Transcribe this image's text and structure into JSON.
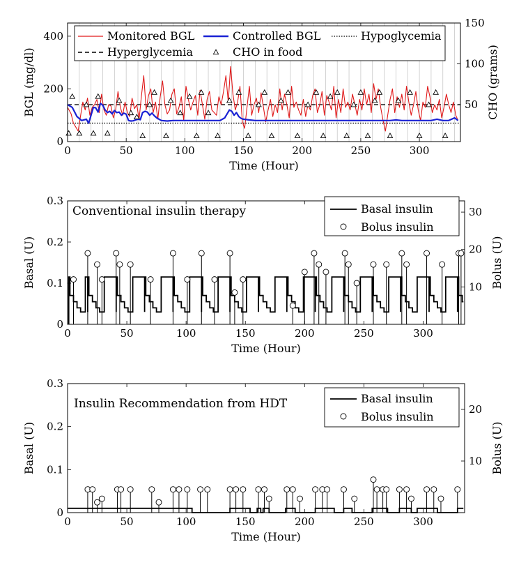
{
  "chart_data": [
    {
      "type": "line",
      "xlabel": "Time (Hour)",
      "ylabel": "BGL (mg/dl)",
      "y2label": "CHO (grams)",
      "xlim": [
        0,
        335
      ],
      "ylim": [
        0,
        450
      ],
      "y2lim": [
        5,
        150
      ],
      "xticks": [
        0,
        50,
        100,
        150,
        200,
        250,
        300
      ],
      "yticks": [
        0,
        200,
        400
      ],
      "y2ticks": [
        50,
        100,
        150
      ],
      "grid_x": true,
      "legend": {
        "placement": "top",
        "entries": [
          {
            "label": "Monitored BGL",
            "style": "red-line"
          },
          {
            "label": "Controlled BGL",
            "style": "blue-line"
          },
          {
            "label": "Hypoglycemia",
            "style": "dotted"
          },
          {
            "label": "Hyperglycemia",
            "style": "dashed"
          },
          {
            "label": "CHO in food",
            "style": "triangle"
          }
        ]
      },
      "thresholds": {
        "hypoglycemia": 70,
        "hyperglycemia": 140
      },
      "series": [
        {
          "name": "Monitored BGL",
          "color": "#e0191a",
          "x": [
            0,
            3,
            5,
            7,
            9,
            11,
            13,
            15,
            17,
            19,
            21,
            23,
            25,
            27,
            29,
            31,
            33,
            35,
            37,
            39,
            41,
            43,
            45,
            47,
            49,
            51,
            53,
            55,
            57,
            59,
            61,
            63,
            65,
            67,
            69,
            71,
            73,
            75,
            77,
            79,
            81,
            83,
            85,
            87,
            89,
            91,
            93,
            95,
            97,
            99,
            101,
            103,
            105,
            107,
            109,
            111,
            113,
            115,
            117,
            119,
            121,
            123,
            125,
            127,
            129,
            131,
            133,
            135,
            137,
            139,
            141,
            143,
            145,
            147,
            149,
            151,
            153,
            155,
            157,
            159,
            161,
            163,
            165,
            167,
            169,
            171,
            173,
            175,
            177,
            179,
            181,
            183,
            185,
            187,
            189,
            191,
            193,
            195,
            197,
            199,
            201,
            203,
            205,
            207,
            209,
            211,
            213,
            215,
            217,
            219,
            221,
            223,
            225,
            227,
            229,
            231,
            233,
            235,
            237,
            239,
            241,
            243,
            245,
            247,
            249,
            251,
            253,
            255,
            257,
            259,
            261,
            263,
            265,
            267,
            269,
            271,
            273,
            275,
            277,
            279,
            281,
            283,
            285,
            287,
            289,
            291,
            293,
            295,
            297,
            299,
            301,
            303,
            305,
            307,
            309,
            311,
            313,
            315,
            317,
            319,
            321,
            323,
            325,
            327,
            329,
            331,
            333
          ],
          "values": [
            130,
            105,
            70,
            55,
            40,
            95,
            150,
            120,
            165,
            100,
            130,
            140,
            160,
            110,
            180,
            120,
            100,
            140,
            135,
            90,
            120,
            190,
            130,
            100,
            150,
            110,
            95,
            165,
            125,
            140,
            85,
            175,
            250,
            120,
            175,
            200,
            110,
            150,
            85,
            170,
            230,
            140,
            105,
            120,
            180,
            200,
            105,
            130,
            170,
            80,
            210,
            160,
            120,
            150,
            175,
            100,
            195,
            140,
            85,
            160,
            190,
            120,
            110,
            100,
            170,
            140,
            190,
            250,
            150,
            285,
            180,
            120,
            150,
            210,
            75,
            50,
            130,
            210,
            100,
            140,
            165,
            110,
            185,
            130,
            75,
            120,
            160,
            95,
            140,
            110,
            200,
            120,
            180,
            140,
            90,
            210,
            130,
            150,
            120,
            100,
            160,
            95,
            140,
            120,
            175,
            200,
            110,
            140,
            190,
            100,
            175,
            150,
            120,
            210,
            90,
            160,
            110,
            200,
            130,
            150,
            120,
            180,
            140,
            100,
            160,
            120,
            200,
            140,
            180,
            110,
            220,
            160,
            200,
            130,
            80,
            40,
            100,
            160,
            200,
            110,
            170,
            130,
            180,
            120,
            210,
            150,
            100,
            140,
            190,
            120,
            80,
            150,
            130,
            210,
            170,
            110,
            140,
            120,
            160,
            90,
            130,
            180,
            140,
            110,
            150,
            100,
            80
          ]
        },
        {
          "name": "Controlled BGL",
          "color": "#1a22d4",
          "x": [
            0,
            4,
            8,
            12,
            16,
            18,
            20,
            22,
            24,
            26,
            28,
            30,
            32,
            34,
            36,
            38,
            40,
            42,
            44,
            46,
            48,
            50,
            52,
            54,
            56,
            58,
            60,
            62,
            64,
            66,
            68,
            70,
            72,
            74,
            76,
            78,
            80,
            85,
            90,
            95,
            100,
            105,
            110,
            115,
            120,
            125,
            130,
            134,
            136,
            138,
            140,
            142,
            144,
            146,
            148,
            150,
            155,
            160,
            165,
            170,
            175,
            180,
            185,
            190,
            195,
            200,
            205,
            210,
            215,
            220,
            225,
            230,
            235,
            240,
            245,
            250,
            255,
            260,
            265,
            270,
            275,
            280,
            285,
            290,
            295,
            300,
            305,
            310,
            315,
            320,
            325,
            330,
            333
          ],
          "values": [
            140,
            130,
            95,
            80,
            85,
            70,
            100,
            130,
            128,
            112,
            145,
            138,
            120,
            110,
            115,
            105,
            118,
            110,
            112,
            100,
            108,
            104,
            80,
            78,
            79,
            82,
            85,
            83,
            110,
            115,
            112,
            100,
            108,
            98,
            90,
            85,
            80,
            78,
            80,
            80,
            80,
            80,
            80,
            80,
            80,
            80,
            80,
            90,
            105,
            120,
            115,
            100,
            110,
            95,
            88,
            85,
            82,
            80,
            80,
            80,
            80,
            80,
            80,
            80,
            80,
            80,
            80,
            80,
            80,
            80,
            80,
            80,
            80,
            80,
            80,
            80,
            80,
            80,
            80,
            80,
            80,
            82,
            80,
            80,
            80,
            80,
            80,
            80,
            85,
            80,
            80,
            90,
            80
          ]
        }
      ],
      "cho_in_food": {
        "name": "CHO in food",
        "x": [
          1,
          4,
          10,
          16,
          22,
          26,
          34,
          44,
          54,
          59,
          64,
          70,
          74,
          84,
          88,
          96,
          104,
          110,
          114,
          120,
          128,
          138,
          146,
          154,
          163,
          168,
          174,
          182,
          188,
          196,
          205,
          212,
          218,
          224,
          230,
          238,
          244,
          250,
          256,
          262,
          266,
          275,
          282,
          292,
          300,
          308,
          314,
          322
        ],
        "values": [
          15,
          60,
          15,
          50,
          15,
          60,
          15,
          55,
          40,
          35,
          12,
          50,
          65,
          12,
          55,
          40,
          60,
          12,
          65,
          40,
          12,
          55,
          65,
          12,
          50,
          65,
          12,
          55,
          65,
          12,
          50,
          65,
          12,
          60,
          65,
          12,
          50,
          65,
          12,
          55,
          65,
          12,
          55,
          65,
          12,
          50,
          65,
          12
        ]
      }
    },
    {
      "type": "line",
      "xlabel": "Time (Hour)",
      "ylabel": "Basal (U)",
      "y2label": "Bolus (U)",
      "xlim": [
        0,
        335
      ],
      "ylim": [
        0,
        0.3
      ],
      "y2lim": [
        0,
        33
      ],
      "xticks": [
        0,
        50,
        100,
        150,
        200,
        250,
        300
      ],
      "yticks": [
        0,
        0.1,
        0.2,
        0.3
      ],
      "y2ticks": [
        10,
        20,
        30
      ],
      "annotation": "Conventional insulin therapy",
      "legend": {
        "placement": "top-right",
        "entries": [
          {
            "label": "Basal insulin",
            "style": "black-line"
          },
          {
            "label": "Bolus insulin",
            "style": "circle"
          }
        ]
      },
      "basal_cycle": {
        "period_hours": 24,
        "starts": [
          1,
          17,
          41,
          65,
          89,
          113,
          137,
          161,
          185,
          209,
          233,
          257,
          281,
          305,
          329
        ],
        "end": 334,
        "steps": [
          [
            0,
            0.115
          ],
          [
            1,
            0.07
          ],
          [
            4,
            0.055
          ],
          [
            7,
            0.04
          ],
          [
            10,
            0.03
          ],
          [
            14,
            0.115
          ]
        ]
      },
      "bolus": {
        "x": [
          5,
          17,
          25,
          29,
          41,
          44,
          53,
          70,
          89,
          101,
          113,
          124,
          137,
          141,
          148,
          190,
          200,
          208,
          212,
          218,
          234,
          237,
          244,
          258,
          269,
          282,
          286,
          303,
          316,
          330,
          332
        ],
        "values": [
          12,
          19,
          16,
          12,
          19,
          16,
          16,
          12,
          19,
          12,
          19,
          12,
          19,
          8.5,
          12,
          5,
          14,
          19,
          16,
          14,
          19,
          16,
          11,
          16,
          16,
          19,
          16,
          19,
          16,
          19,
          19
        ]
      }
    },
    {
      "type": "line",
      "xlabel": "Time (Hour)",
      "ylabel": "Basal (U)",
      "y2label": "Bolus (U)",
      "xlim": [
        0,
        335
      ],
      "ylim": [
        0,
        0.3
      ],
      "y2lim": [
        0,
        25
      ],
      "xticks": [
        0,
        50,
        100,
        150,
        200,
        250,
        300
      ],
      "yticks": [
        0,
        0.1,
        0.2,
        0.3
      ],
      "y2ticks": [
        10,
        20
      ],
      "annotation": "Insulin Recommendation from HDT",
      "legend": {
        "placement": "top-right",
        "entries": [
          {
            "label": "Basal insulin",
            "style": "black-line"
          },
          {
            "label": "Bolus insulin",
            "style": "circle"
          }
        ]
      },
      "basal_steps": {
        "base": 0.01,
        "zero_spans": [
          [
            105,
            137
          ],
          [
            154,
            160
          ],
          [
            163,
            165
          ],
          [
            170,
            184
          ],
          [
            192,
            209
          ],
          [
            225,
            233
          ],
          [
            240,
            257
          ],
          [
            270,
            280
          ],
          [
            290,
            295
          ],
          [
            312,
            329
          ]
        ]
      },
      "bolus": {
        "x": [
          17,
          21,
          25,
          29,
          42,
          45,
          53,
          71,
          77,
          89,
          94,
          101,
          112,
          118,
          137,
          142,
          148,
          161,
          166,
          170,
          185,
          190,
          196,
          209,
          215,
          219,
          233,
          242,
          258,
          261,
          266,
          269,
          280,
          286,
          290,
          303,
          309,
          315,
          329
        ],
        "values": [
          4.5,
          4.5,
          2,
          2.7,
          4.5,
          4.5,
          4.5,
          4.5,
          2,
          4.5,
          4.5,
          4.5,
          4.5,
          4.5,
          4.5,
          4.5,
          4.5,
          4.5,
          4.5,
          2.7,
          4.5,
          4.5,
          2.7,
          4.5,
          4.5,
          4.5,
          4.5,
          2.7,
          6.4,
          4.5,
          4.5,
          4.5,
          4.5,
          4.5,
          2.7,
          4.5,
          4.5,
          2.7,
          4.5
        ]
      }
    }
  ]
}
